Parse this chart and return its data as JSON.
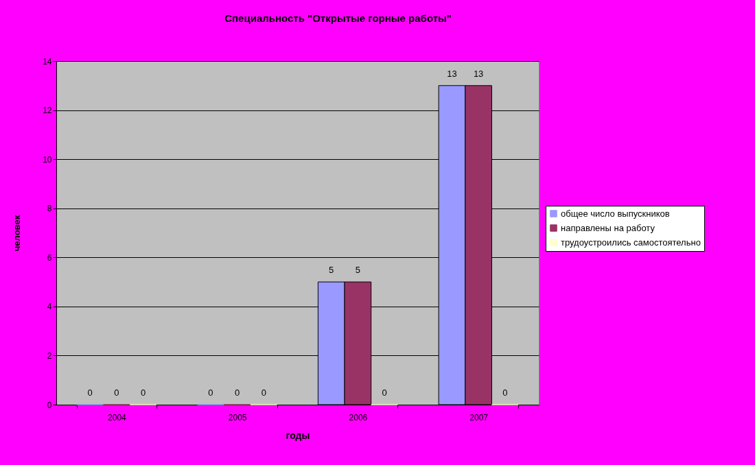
{
  "chart_data": {
    "type": "bar",
    "title": "Специальность \"Открытые горные работы\"",
    "xlabel": "годы",
    "ylabel": "человек",
    "categories": [
      "2004",
      "2005",
      "2006",
      "2007"
    ],
    "series": [
      {
        "name": "общее число выпускников",
        "color": "#9999ff",
        "values": [
          0,
          0,
          5,
          13
        ]
      },
      {
        "name": "направлены на работу",
        "color": "#993366",
        "values": [
          0,
          0,
          5,
          13
        ]
      },
      {
        "name": "трудоустроились самостоятельно",
        "color": "#ffffcc",
        "values": [
          0,
          0,
          0,
          0
        ]
      }
    ],
    "ylim": [
      0,
      14
    ],
    "yticks": [
      0,
      2,
      4,
      6,
      8,
      10,
      12,
      14
    ],
    "grid": "y",
    "legend": "right",
    "data_labels": true
  }
}
